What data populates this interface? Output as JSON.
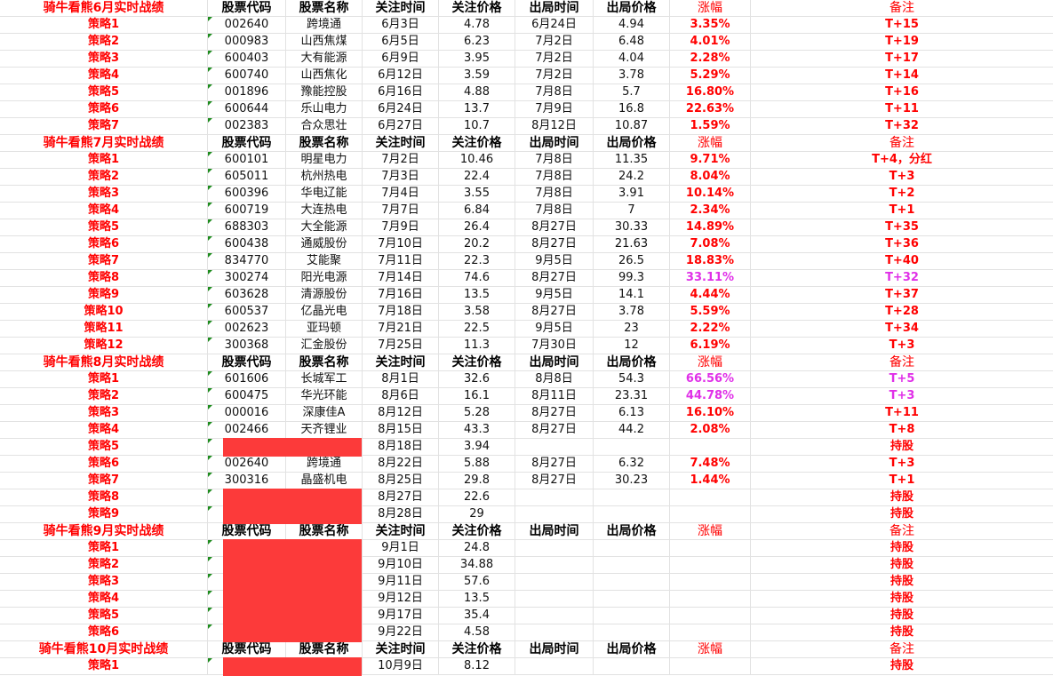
{
  "colors": {
    "accent": "#ff0000",
    "highlight": "#e030e8",
    "redaction": "#fc3a3a",
    "indicator": "#1e8c1e"
  },
  "headers": [
    "股票代码",
    "股票名称",
    "关注时间",
    "关注价格",
    "出局时间",
    "出局价格",
    "涨幅",
    "备注"
  ],
  "sections": [
    {
      "title": "骑牛看熊6月实时战绩",
      "items": [
        {
          "label": "策略1",
          "code": "002640",
          "name": "跨境通",
          "in_date": "6月3日",
          "in_price": "4.78",
          "out_date": "6月24日",
          "out_price": "4.94",
          "gain": "3.35%",
          "note": "T+15"
        },
        {
          "label": "策略2",
          "code": "000983",
          "name": "山西焦煤",
          "in_date": "6月5日",
          "in_price": "6.23",
          "out_date": "7月2日",
          "out_price": "6.48",
          "gain": "4.01%",
          "note": "T+19"
        },
        {
          "label": "策略3",
          "code": "600403",
          "name": "大有能源",
          "in_date": "6月9日",
          "in_price": "3.95",
          "out_date": "7月2日",
          "out_price": "4.04",
          "gain": "2.28%",
          "note": "T+17"
        },
        {
          "label": "策略4",
          "code": "600740",
          "name": "山西焦化",
          "in_date": "6月12日",
          "in_price": "3.59",
          "out_date": "7月2日",
          "out_price": "3.78",
          "gain": "5.29%",
          "note": "T+14"
        },
        {
          "label": "策略5",
          "code": "001896",
          "name": "豫能控股",
          "in_date": "6月16日",
          "in_price": "4.88",
          "out_date": "7月8日",
          "out_price": "5.7",
          "gain": "16.80%",
          "note": "T+16"
        },
        {
          "label": "策略6",
          "code": "600644",
          "name": "乐山电力",
          "in_date": "6月24日",
          "in_price": "13.7",
          "out_date": "7月9日",
          "out_price": "16.8",
          "gain": "22.63%",
          "note": "T+11"
        },
        {
          "label": "策略7",
          "code": "002383",
          "name": "合众思壮",
          "in_date": "6月27日",
          "in_price": "10.7",
          "out_date": "8月12日",
          "out_price": "10.87",
          "gain": "1.59%",
          "note": "T+32"
        }
      ]
    },
    {
      "title": "骑牛看熊7月实时战绩",
      "items": [
        {
          "label": "策略1",
          "code": "600101",
          "name": "明星电力",
          "in_date": "7月2日",
          "in_price": "10.46",
          "out_date": "7月8日",
          "out_price": "11.35",
          "gain": "9.71%",
          "note": "T+4，分红"
        },
        {
          "label": "策略2",
          "code": "605011",
          "name": "杭州热电",
          "in_date": "7月3日",
          "in_price": "22.4",
          "out_date": "7月8日",
          "out_price": "24.2",
          "gain": "8.04%",
          "note": "T+3"
        },
        {
          "label": "策略3",
          "code": "600396",
          "name": "华电辽能",
          "in_date": "7月4日",
          "in_price": "3.55",
          "out_date": "7月8日",
          "out_price": "3.91",
          "gain": "10.14%",
          "note": "T+2"
        },
        {
          "label": "策略4",
          "code": "600719",
          "name": "大连热电",
          "in_date": "7月7日",
          "in_price": "6.84",
          "out_date": "7月8日",
          "out_price": "7",
          "gain": "2.34%",
          "note": "T+1"
        },
        {
          "label": "策略5",
          "code": "688303",
          "name": "大全能源",
          "in_date": "7月9日",
          "in_price": "26.4",
          "out_date": "8月27日",
          "out_price": "30.33",
          "gain": "14.89%",
          "note": "T+35"
        },
        {
          "label": "策略6",
          "code": "600438",
          "name": "通威股份",
          "in_date": "7月10日",
          "in_price": "20.2",
          "out_date": "8月27日",
          "out_price": "21.63",
          "gain": "7.08%",
          "note": "T+36"
        },
        {
          "label": "策略7",
          "code": "834770",
          "name": "艾能聚",
          "in_date": "7月11日",
          "in_price": "22.3",
          "out_date": "9月5日",
          "out_price": "26.5",
          "gain": "18.83%",
          "note": "T+40"
        },
        {
          "label": "策略8",
          "code": "300274",
          "name": "阳光电源",
          "in_date": "7月14日",
          "in_price": "74.6",
          "out_date": "8月27日",
          "out_price": "99.3",
          "gain": "33.11%",
          "note": "T+32",
          "highlight": true
        },
        {
          "label": "策略9",
          "code": "603628",
          "name": "清源股份",
          "in_date": "7月16日",
          "in_price": "13.5",
          "out_date": "9月5日",
          "out_price": "14.1",
          "gain": "4.44%",
          "note": "T+37"
        },
        {
          "label": "策略10",
          "code": "600537",
          "name": "亿晶光电",
          "in_date": "7月18日",
          "in_price": "3.58",
          "out_date": "8月27日",
          "out_price": "3.78",
          "gain": "5.59%",
          "note": "T+28"
        },
        {
          "label": "策略11",
          "code": "002623",
          "name": "亚玛顿",
          "in_date": "7月21日",
          "in_price": "22.5",
          "out_date": "9月5日",
          "out_price": "23",
          "gain": "2.22%",
          "note": "T+34"
        },
        {
          "label": "策略12",
          "code": "300368",
          "name": "汇金股份",
          "in_date": "7月25日",
          "in_price": "11.3",
          "out_date": "7月30日",
          "out_price": "12",
          "gain": "6.19%",
          "note": "T+3"
        }
      ]
    },
    {
      "title": "骑牛看熊8月实时战绩",
      "items": [
        {
          "label": "策略1",
          "code": "601606",
          "name": "长城军工",
          "in_date": "8月1日",
          "in_price": "32.6",
          "out_date": "8月8日",
          "out_price": "54.3",
          "gain": "66.56%",
          "note": "T+5",
          "highlight": true
        },
        {
          "label": "策略2",
          "code": "600475",
          "name": "华光环能",
          "in_date": "8月6日",
          "in_price": "16.1",
          "out_date": "8月11日",
          "out_price": "23.31",
          "gain": "44.78%",
          "note": "T+3",
          "highlight": true
        },
        {
          "label": "策略3",
          "code": "000016",
          "name": "深康佳A",
          "in_date": "8月12日",
          "in_price": "5.28",
          "out_date": "8月27日",
          "out_price": "6.13",
          "gain": "16.10%",
          "note": "T+11"
        },
        {
          "label": "策略4",
          "code": "002466",
          "name": "天齐锂业",
          "in_date": "8月15日",
          "in_price": "43.3",
          "out_date": "8月27日",
          "out_price": "44.2",
          "gain": "2.08%",
          "note": "T+8"
        },
        {
          "label": "策略5",
          "redacted": true,
          "in_date": "8月18日",
          "in_price": "3.94",
          "note": "持股"
        },
        {
          "label": "策略6",
          "code": "002640",
          "name": "跨境通",
          "in_date": "8月22日",
          "in_price": "5.88",
          "out_date": "8月27日",
          "out_price": "6.32",
          "gain": "7.48%",
          "note": "T+3"
        },
        {
          "label": "策略7",
          "code": "300316",
          "name": "晶盛机电",
          "in_date": "8月25日",
          "in_price": "29.8",
          "out_date": "8月27日",
          "out_price": "30.23",
          "gain": "1.44%",
          "note": "T+1"
        },
        {
          "label": "策略8",
          "redacted": true,
          "in_date": "8月27日",
          "in_price": "22.6",
          "note": "持股"
        },
        {
          "label": "策略9",
          "redacted": true,
          "in_date": "8月28日",
          "in_price": "29",
          "note": "持股"
        }
      ]
    },
    {
      "title": "骑牛看熊9月实时战绩",
      "items": [
        {
          "label": "策略1",
          "redacted": true,
          "in_date": "9月1日",
          "in_price": "24.8",
          "note": "持股"
        },
        {
          "label": "策略2",
          "redacted": true,
          "in_date": "9月10日",
          "in_price": "34.88",
          "note": "持股"
        },
        {
          "label": "策略3",
          "redacted": true,
          "in_date": "9月11日",
          "in_price": "57.6",
          "note": "持股"
        },
        {
          "label": "策略4",
          "redacted": true,
          "in_date": "9月12日",
          "in_price": "13.5",
          "note": "持股"
        },
        {
          "label": "策略5",
          "redacted": true,
          "in_date": "9月17日",
          "in_price": "35.4",
          "note": "持股"
        },
        {
          "label": "策略6",
          "redacted": true,
          "in_date": "9月22日",
          "in_price": "4.58",
          "note": "持股"
        }
      ]
    },
    {
      "title": "骑牛看熊10月实时战绩",
      "items": [
        {
          "label": "策略1",
          "redacted": true,
          "in_date": "10月9日",
          "in_price": "8.12",
          "note": "持股"
        }
      ]
    }
  ]
}
